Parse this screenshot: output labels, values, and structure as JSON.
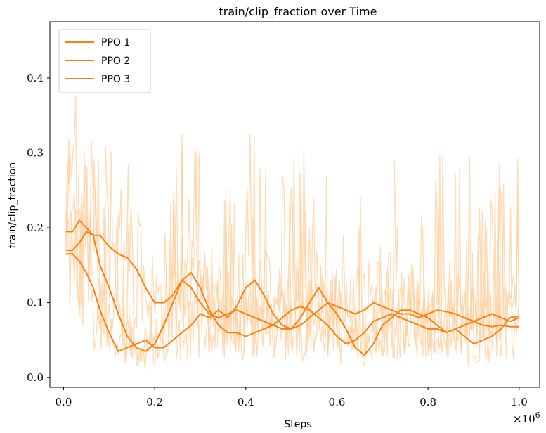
{
  "chart_data": {
    "type": "line",
    "title": "train/clip_fraction over Time",
    "xlabel": "Steps",
    "ylabel": "train/clip_fraction",
    "x_offset_label": "×10",
    "x_offset_exp": "6",
    "xlim": [
      -0.03,
      1.045
    ],
    "ylim": [
      -0.013,
      0.475
    ],
    "x_ticks": [
      0.0,
      0.2,
      0.4,
      0.6,
      0.8,
      1.0
    ],
    "x_tick_labels": [
      "0.0",
      "0.2",
      "0.4",
      "0.6",
      "0.8",
      "1.0"
    ],
    "y_ticks": [
      0.0,
      0.1,
      0.2,
      0.3,
      0.4
    ],
    "y_tick_labels": [
      "0.0",
      "0.1",
      "0.2",
      "0.3",
      "0.4"
    ],
    "grid": false,
    "legend_position": "top-left",
    "colors": {
      "smoothed": "#ff7f0e",
      "raw": "#ffcf9e"
    },
    "series": [
      {
        "name": "PPO 1",
        "x": [
          0.005,
          0.02,
          0.035,
          0.05,
          0.065,
          0.08,
          0.1,
          0.12,
          0.14,
          0.16,
          0.18,
          0.2,
          0.22,
          0.24,
          0.26,
          0.28,
          0.3,
          0.32,
          0.34,
          0.36,
          0.38,
          0.4,
          0.42,
          0.44,
          0.46,
          0.48,
          0.5,
          0.52,
          0.54,
          0.56,
          0.58,
          0.6,
          0.62,
          0.64,
          0.66,
          0.68,
          0.7,
          0.72,
          0.74,
          0.76,
          0.78,
          0.8,
          0.82,
          0.84,
          0.86,
          0.88,
          0.9,
          0.92,
          0.94,
          0.96,
          0.98,
          1.0
        ],
        "values": [
          0.17,
          0.17,
          0.18,
          0.195,
          0.19,
          0.15,
          0.12,
          0.085,
          0.055,
          0.04,
          0.035,
          0.045,
          0.07,
          0.1,
          0.13,
          0.14,
          0.12,
          0.09,
          0.07,
          0.06,
          0.06,
          0.055,
          0.06,
          0.065,
          0.07,
          0.08,
          0.09,
          0.095,
          0.09,
          0.08,
          0.07,
          0.055,
          0.045,
          0.05,
          0.06,
          0.075,
          0.08,
          0.085,
          0.08,
          0.075,
          0.07,
          0.065,
          0.065,
          0.06,
          0.065,
          0.07,
          0.075,
          0.08,
          0.085,
          0.08,
          0.075,
          0.08
        ]
      },
      {
        "name": "PPO 2",
        "x": [
          0.005,
          0.02,
          0.035,
          0.05,
          0.065,
          0.08,
          0.1,
          0.12,
          0.14,
          0.16,
          0.18,
          0.2,
          0.22,
          0.24,
          0.26,
          0.28,
          0.3,
          0.32,
          0.34,
          0.36,
          0.38,
          0.4,
          0.42,
          0.44,
          0.46,
          0.48,
          0.5,
          0.52,
          0.54,
          0.56,
          0.58,
          0.6,
          0.62,
          0.64,
          0.66,
          0.68,
          0.7,
          0.72,
          0.74,
          0.76,
          0.78,
          0.8,
          0.82,
          0.84,
          0.86,
          0.88,
          0.9,
          0.92,
          0.94,
          0.96,
          0.98,
          1.0
        ],
        "values": [
          0.195,
          0.195,
          0.21,
          0.2,
          0.19,
          0.19,
          0.175,
          0.165,
          0.16,
          0.145,
          0.12,
          0.1,
          0.1,
          0.11,
          0.13,
          0.12,
          0.1,
          0.085,
          0.08,
          0.085,
          0.09,
          0.085,
          0.08,
          0.075,
          0.07,
          0.065,
          0.065,
          0.07,
          0.08,
          0.09,
          0.1,
          0.095,
          0.09,
          0.085,
          0.09,
          0.1,
          0.095,
          0.09,
          0.085,
          0.085,
          0.08,
          0.085,
          0.09,
          0.088,
          0.085,
          0.08,
          0.075,
          0.07,
          0.068,
          0.07,
          0.068,
          0.068
        ]
      },
      {
        "name": "PPO 3",
        "x": [
          0.005,
          0.02,
          0.035,
          0.05,
          0.065,
          0.08,
          0.1,
          0.12,
          0.14,
          0.16,
          0.18,
          0.2,
          0.22,
          0.24,
          0.26,
          0.28,
          0.3,
          0.32,
          0.34,
          0.36,
          0.38,
          0.4,
          0.42,
          0.44,
          0.46,
          0.48,
          0.5,
          0.52,
          0.54,
          0.56,
          0.58,
          0.6,
          0.62,
          0.64,
          0.66,
          0.68,
          0.7,
          0.72,
          0.74,
          0.76,
          0.78,
          0.8,
          0.82,
          0.84,
          0.86,
          0.88,
          0.9,
          0.92,
          0.94,
          0.96,
          0.98,
          1.0
        ],
        "values": [
          0.165,
          0.165,
          0.155,
          0.14,
          0.12,
          0.09,
          0.06,
          0.035,
          0.04,
          0.045,
          0.05,
          0.04,
          0.04,
          0.05,
          0.06,
          0.07,
          0.085,
          0.08,
          0.09,
          0.08,
          0.095,
          0.12,
          0.13,
          0.11,
          0.085,
          0.07,
          0.065,
          0.08,
          0.1,
          0.12,
          0.1,
          0.085,
          0.065,
          0.04,
          0.03,
          0.045,
          0.07,
          0.08,
          0.09,
          0.09,
          0.085,
          0.08,
          0.07,
          0.06,
          0.065,
          0.055,
          0.045,
          0.05,
          0.055,
          0.065,
          0.08,
          0.082
        ]
      }
    ]
  }
}
